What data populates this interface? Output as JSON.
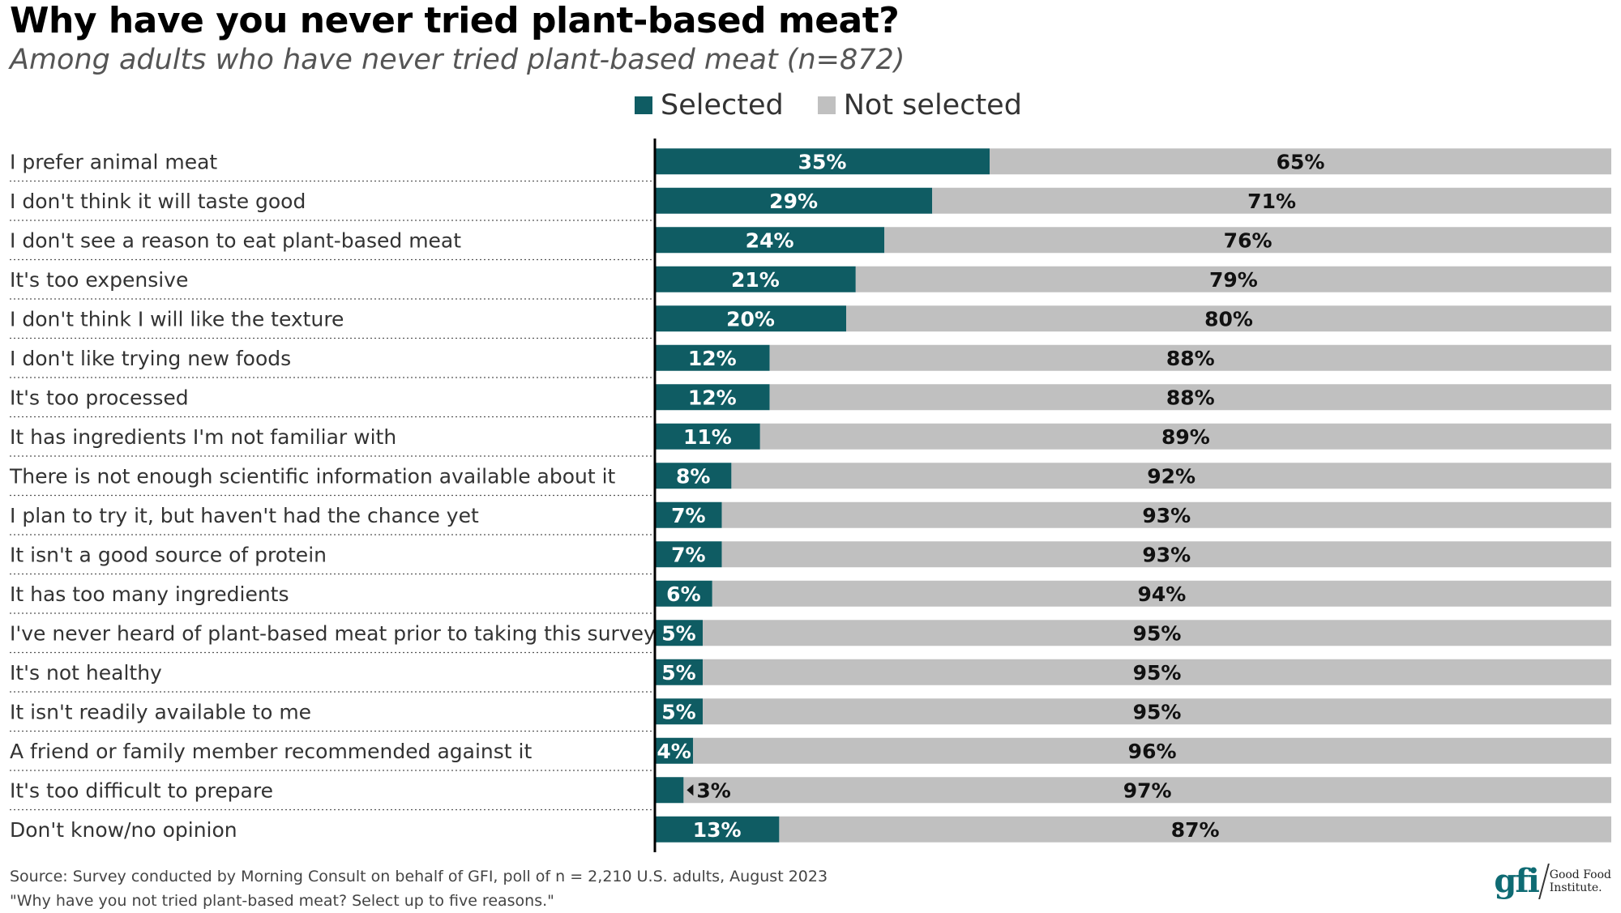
{
  "title": "Why have you never tried plant-based meat?",
  "subtitle": "Among adults who have never tried plant-based meat (n=872)",
  "legend": {
    "selected": "Selected",
    "not_selected": "Not selected"
  },
  "colors": {
    "selected": "#0f5c63",
    "not_selected": "#c0c0c0",
    "label_on_dark": "#ffffff",
    "label_on_light": "#111111"
  },
  "chart_data": {
    "type": "bar",
    "orientation": "horizontal",
    "stacked": true,
    "xlim": [
      0,
      100
    ],
    "categories": [
      "I prefer animal meat",
      "I don't think it will taste good",
      "I don't see a reason to eat plant-based meat",
      "It's too expensive",
      "I don't think I will like the texture",
      "I don't like trying new foods",
      "It's too processed",
      "It has ingredients I'm not familiar with",
      "There is not enough scientific information available about it",
      "I plan to try it, but haven't had the chance yet",
      "It isn't a good source of protein",
      "It has too many ingredients",
      "I've never heard of plant-based meat prior to taking this survey",
      "It's not healthy",
      "It isn't readily available to me",
      "A friend or family member recommended against it",
      "It's too difficult to prepare",
      "Don't know/no opinion"
    ],
    "series": [
      {
        "name": "Selected",
        "values": [
          35,
          29,
          24,
          21,
          20,
          12,
          12,
          11,
          8,
          7,
          7,
          6,
          5,
          5,
          5,
          4,
          3,
          13
        ],
        "labels": [
          "35%",
          "29%",
          "24%",
          "21%",
          "20%",
          "12%",
          "12%",
          "11%",
          "8%",
          "7%",
          "7%",
          "6%",
          "5%",
          "5%",
          "5%",
          "4%",
          "3%",
          "13%"
        ]
      },
      {
        "name": "Not selected",
        "values": [
          65,
          71,
          76,
          79,
          80,
          88,
          88,
          89,
          92,
          93,
          93,
          94,
          95,
          95,
          95,
          96,
          97,
          87
        ],
        "labels": [
          "65%",
          "71%",
          "76%",
          "79%",
          "80%",
          "88%",
          "88%",
          "89%",
          "92%",
          "93%",
          "93%",
          "94%",
          "95%",
          "95%",
          "95%",
          "96%",
          "97%",
          "87%"
        ]
      }
    ]
  },
  "source": {
    "line1": "Source: Survey conducted by Morning Consult on behalf of GFI, poll of n = 2,210 U.S. adults, August 2023",
    "line2": "\"Why have you not tried plant-based meat? Select up to five reasons.\""
  },
  "logo": {
    "mark": "gfi",
    "text_line1": "Good Food",
    "text_line2": "Institute."
  }
}
